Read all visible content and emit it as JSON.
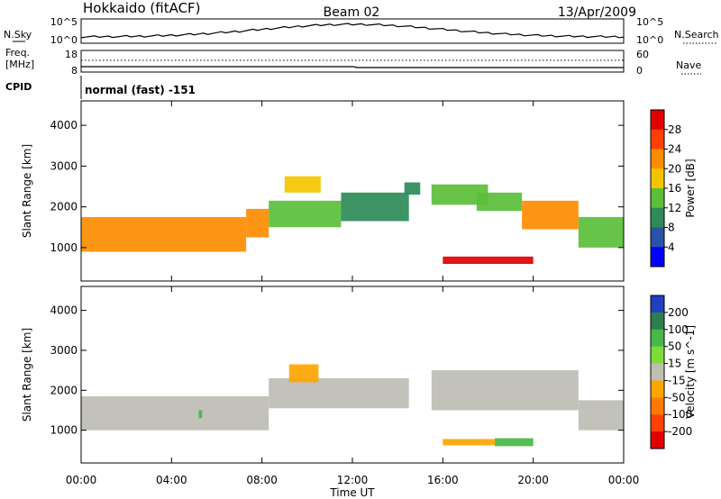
{
  "header": {
    "station": "Hokkaido (fitACF)",
    "beam": "Beam 02",
    "date": "13/Apr/2009"
  },
  "noise_panel": {
    "left_label": "N.Sky",
    "right_label": "N.Search",
    "left_ticks": [
      "10^5",
      "10^0"
    ],
    "right_ticks": [
      "10^5",
      "10^0"
    ]
  },
  "freq_panel": {
    "left_label_1": "Freq.",
    "left_label_2": "[MHz]",
    "right_label": "Nave",
    "left_ticks": [
      "18",
      "8"
    ],
    "right_ticks": [
      "60",
      "0"
    ]
  },
  "cpid_panel": {
    "label": "CPID",
    "value": "normal (fast) -151"
  },
  "colors": {
    "power_scale": [
      "#0000ff",
      "#2a52a8",
      "#2e8b57",
      "#5bbf3a",
      "#f5c400",
      "#ff8c00",
      "#ff4000",
      "#e00000"
    ],
    "velocity_scale": [
      "#2040c0",
      "#2e7d4f",
      "#48b848",
      "#7ddc3a",
      "#bfbfb0",
      "#ffa500",
      "#ff7a00",
      "#ff4000",
      "#e00000"
    ],
    "ground_scatter": "#bdbdb5"
  },
  "chart_data": [
    {
      "type": "heatmap",
      "title": "",
      "quantity": "Power",
      "xlabel": "Time UT",
      "ylabel": "Slant Range [km]",
      "xlim_hours": [
        0,
        24
      ],
      "ylim": [
        180,
        4600
      ],
      "xticks": [
        "00:00",
        "04:00",
        "08:00",
        "12:00",
        "16:00",
        "20:00",
        "00:00"
      ],
      "yticks": [
        1000,
        2000,
        3000,
        4000
      ],
      "colorbar": {
        "label": "Power [dB]",
        "ticks": [
          4,
          8,
          12,
          16,
          20,
          24,
          28
        ],
        "range": [
          0,
          32
        ]
      },
      "regions": [
        {
          "t0": 0.0,
          "t1": 7.3,
          "r0": 900,
          "r1": 1750,
          "value": 23
        },
        {
          "t0": 7.3,
          "t1": 8.3,
          "r0": 1250,
          "r1": 1950,
          "value": 22
        },
        {
          "t0": 8.3,
          "t1": 11.5,
          "r0": 1500,
          "r1": 2150,
          "value": 14
        },
        {
          "t0": 9.0,
          "t1": 10.6,
          "r0": 2350,
          "r1": 2750,
          "value": 16
        },
        {
          "t0": 11.5,
          "t1": 14.5,
          "r0": 1650,
          "r1": 2350,
          "value": 11
        },
        {
          "t0": 14.3,
          "t1": 15.0,
          "r0": 2300,
          "r1": 2600,
          "value": 9
        },
        {
          "t0": 15.5,
          "t1": 18.0,
          "r0": 2050,
          "r1": 2550,
          "value": 12
        },
        {
          "t0": 17.5,
          "t1": 19.5,
          "r0": 1900,
          "r1": 2350,
          "value": 14
        },
        {
          "t0": 19.5,
          "t1": 22.0,
          "r0": 1450,
          "r1": 2150,
          "value": 22
        },
        {
          "t0": 22.0,
          "t1": 24.0,
          "r0": 1000,
          "r1": 1750,
          "value": 12
        },
        {
          "t0": 16.0,
          "t1": 20.0,
          "r0": 600,
          "r1": 780,
          "value": 28
        }
      ]
    },
    {
      "type": "heatmap",
      "title": "",
      "quantity": "Velocity",
      "xlabel": "Time UT",
      "ylabel": "Slant Range [km]",
      "xlim_hours": [
        0,
        24
      ],
      "ylim": [
        180,
        4600
      ],
      "xticks": [
        "00:00",
        "04:00",
        "08:00",
        "12:00",
        "16:00",
        "20:00",
        "00:00"
      ],
      "yticks": [
        1000,
        2000,
        3000,
        4000
      ],
      "colorbar": {
        "label": "Velocity [m s^-1]",
        "ticks": [
          200,
          100,
          50,
          15,
          -15,
          -50,
          -100,
          -200
        ]
      },
      "regions": [
        {
          "t0": 0.0,
          "t1": 8.3,
          "r0": 1000,
          "r1": 1850,
          "kind": "ground"
        },
        {
          "t0": 8.3,
          "t1": 14.5,
          "r0": 1550,
          "r1": 2300,
          "kind": "ground"
        },
        {
          "t0": 15.5,
          "t1": 22.0,
          "r0": 1500,
          "r1": 2500,
          "kind": "ground"
        },
        {
          "t0": 22.0,
          "t1": 24.0,
          "r0": 1000,
          "r1": 1750,
          "kind": "ground"
        },
        {
          "t0": 9.2,
          "t1": 10.5,
          "r0": 2200,
          "r1": 2650,
          "value": -50
        },
        {
          "t0": 5.2,
          "t1": 5.35,
          "r0": 1300,
          "r1": 1500,
          "value": 50
        },
        {
          "t0": 16.0,
          "t1": 18.3,
          "r0": 620,
          "r1": 780,
          "value": -50
        },
        {
          "t0": 18.3,
          "t1": 20.0,
          "r0": 600,
          "r1": 800,
          "value": 50
        }
      ]
    }
  ]
}
